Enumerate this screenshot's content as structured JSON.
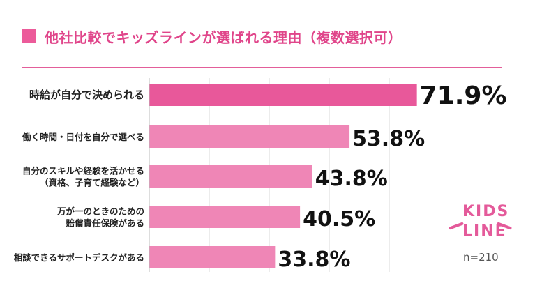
{
  "header": {
    "title": "他社比較でキッズラインが選ばれる理由（複数選択可）"
  },
  "colors": {
    "accent": "#ec5b9a",
    "bar_top": "#e8589a",
    "bar_other": "#ef86b6",
    "title": "#e0458a"
  },
  "chart_data": {
    "type": "bar",
    "orientation": "horizontal",
    "title": "他社比較でキッズラインが選ばれる理由（複数選択可）",
    "xlim": [
      0,
      100
    ],
    "grid": true,
    "categories": [
      [
        "時給が自分で決められる"
      ],
      [
        "働く時間・日付を自分で選べる"
      ],
      [
        "自分のスキルや経験を活かせる",
        "（資格、子育て経験など）"
      ],
      [
        "万が一のときのための",
        "賠償責任保険がある"
      ],
      [
        "相談できるサポートデスクがある"
      ]
    ],
    "values": [
      71.9,
      53.8,
      43.8,
      40.5,
      33.8
    ],
    "value_labels": [
      "71.9%",
      "53.8%",
      "43.8%",
      "40.5%",
      "33.8%"
    ]
  },
  "footer": {
    "sample_size": "n=210",
    "logo_line1": "KIDS",
    "logo_line2": "LINE"
  }
}
